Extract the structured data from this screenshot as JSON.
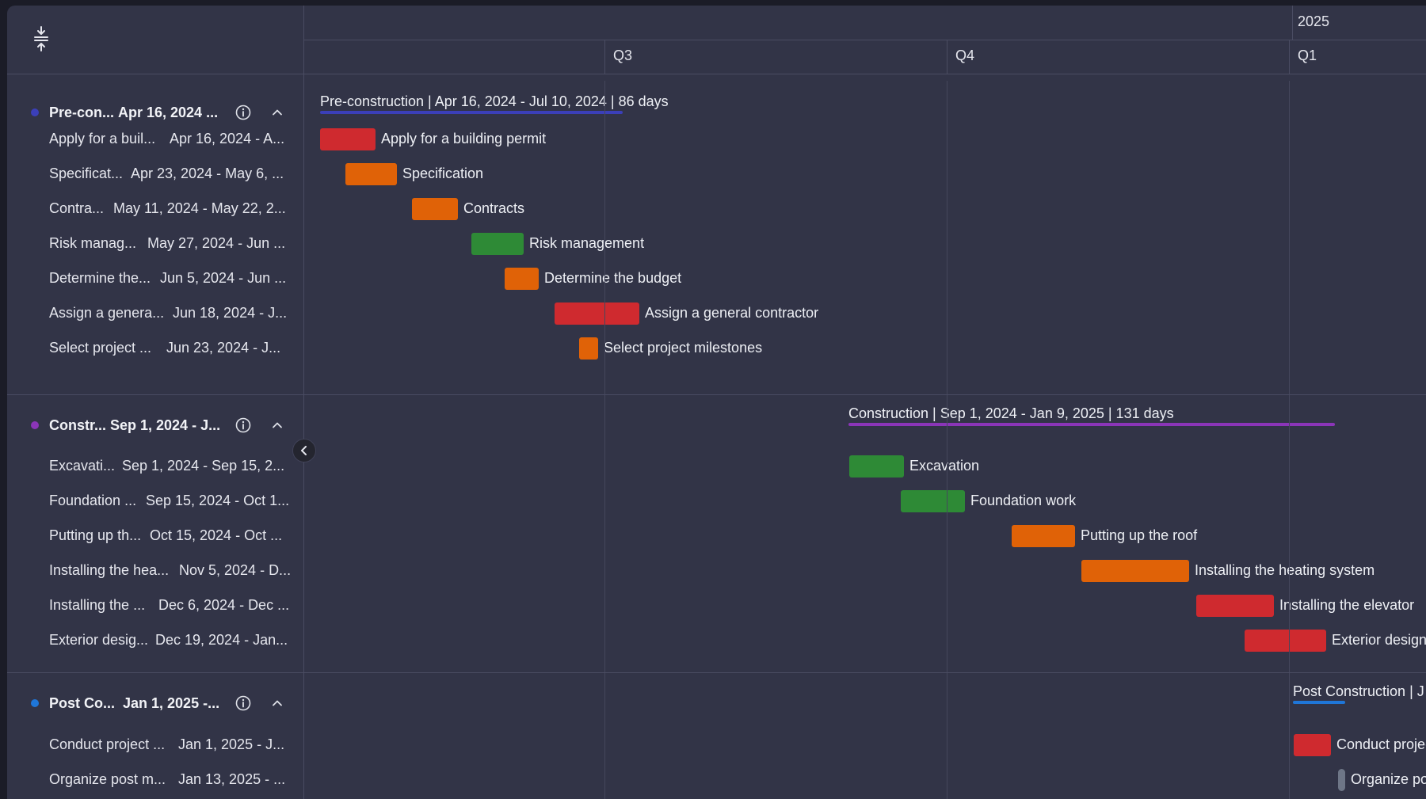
{
  "colors": {
    "red": "#cf2a2f",
    "orange": "#e06207",
    "green": "#2e8a36",
    "grey": "#6e7687",
    "preconstruction": "#3b3fb8",
    "construction": "#8b35b8",
    "post_construction": "#1f76d8"
  },
  "toolbar": {
    "collapse_icon": "collapse-rows-icon"
  },
  "timeline": {
    "year_label": "2025",
    "quarters": [
      "Q3",
      "Q4",
      "Q1"
    ]
  },
  "groups": [
    {
      "name": "Pre-con...",
      "date": "Apr 16, 2024 ...",
      "color": "#3b3fb8",
      "summary": "Pre-construction | Apr 16, 2024 - Jul 10, 2024 | 86 days",
      "tasks": [
        {
          "name": "Apply for a buil...",
          "date": "Apr 16, 2024 - A...",
          "title": "Apply for a building permit",
          "color": "#cf2a2f"
        },
        {
          "name": "Specificat...",
          "date": "Apr 23, 2024 - May 6, ...",
          "title": "Specification",
          "color": "#e06207"
        },
        {
          "name": "Contra...",
          "date": "May 11, 2024 - May 22, 2...",
          "title": "Contracts",
          "color": "#e06207"
        },
        {
          "name": "Risk manag...",
          "date": "May 27, 2024 - Jun ...",
          "title": "Risk management",
          "color": "#2e8a36"
        },
        {
          "name": "Determine the...",
          "date": "Jun 5, 2024 - Jun ...",
          "title": "Determine the budget",
          "color": "#e06207"
        },
        {
          "name": "Assign a genera...",
          "date": "Jun 18, 2024 - J...",
          "title": "Assign a general contractor",
          "color": "#cf2a2f"
        },
        {
          "name": "Select project ...",
          "date": "Jun 23, 2024 - J...",
          "title": "Select project milestones",
          "color": "#e06207"
        }
      ]
    },
    {
      "name": "Constr...",
      "date": "Sep 1, 2024 - J...",
      "color": "#8b35b8",
      "summary": "Construction | Sep 1, 2024 - Jan 9, 2025 | 131 days",
      "tasks": [
        {
          "name": "Excavati...",
          "date": "Sep 1, 2024 - Sep 15, 2...",
          "title": "Excavation",
          "color": "#2e8a36"
        },
        {
          "name": "Foundation ...",
          "date": "Sep 15, 2024 - Oct 1...",
          "title": "Foundation work",
          "color": "#2e8a36"
        },
        {
          "name": "Putting up th...",
          "date": "Oct 15, 2024 - Oct ...",
          "title": "Putting up the roof",
          "color": "#e06207"
        },
        {
          "name": "Installing the hea...",
          "date": "Nov 5, 2024 - D...",
          "title": "Installing the heating system",
          "color": "#e06207"
        },
        {
          "name": "Installing the ...",
          "date": "Dec 6, 2024 - Dec ...",
          "title": "Installing the elevator",
          "color": "#cf2a2f"
        },
        {
          "name": "Exterior desig...",
          "date": "Dec 19, 2024 - Jan...",
          "title": "Exterior design",
          "color": "#cf2a2f"
        }
      ]
    },
    {
      "name": "Post Co...",
      "date": "Jan 1, 2025 -...",
      "color": "#1f76d8",
      "summary": "Post Construction | J",
      "tasks": [
        {
          "name": "Conduct project ...",
          "date": "Jan 1, 2025 - J...",
          "title": "Conduct projec",
          "color": "#cf2a2f"
        },
        {
          "name": "Organize post m...",
          "date": "Jan 13, 2025 - ...",
          "title": "Organize pos",
          "color": "#6e7687"
        }
      ]
    }
  ]
}
